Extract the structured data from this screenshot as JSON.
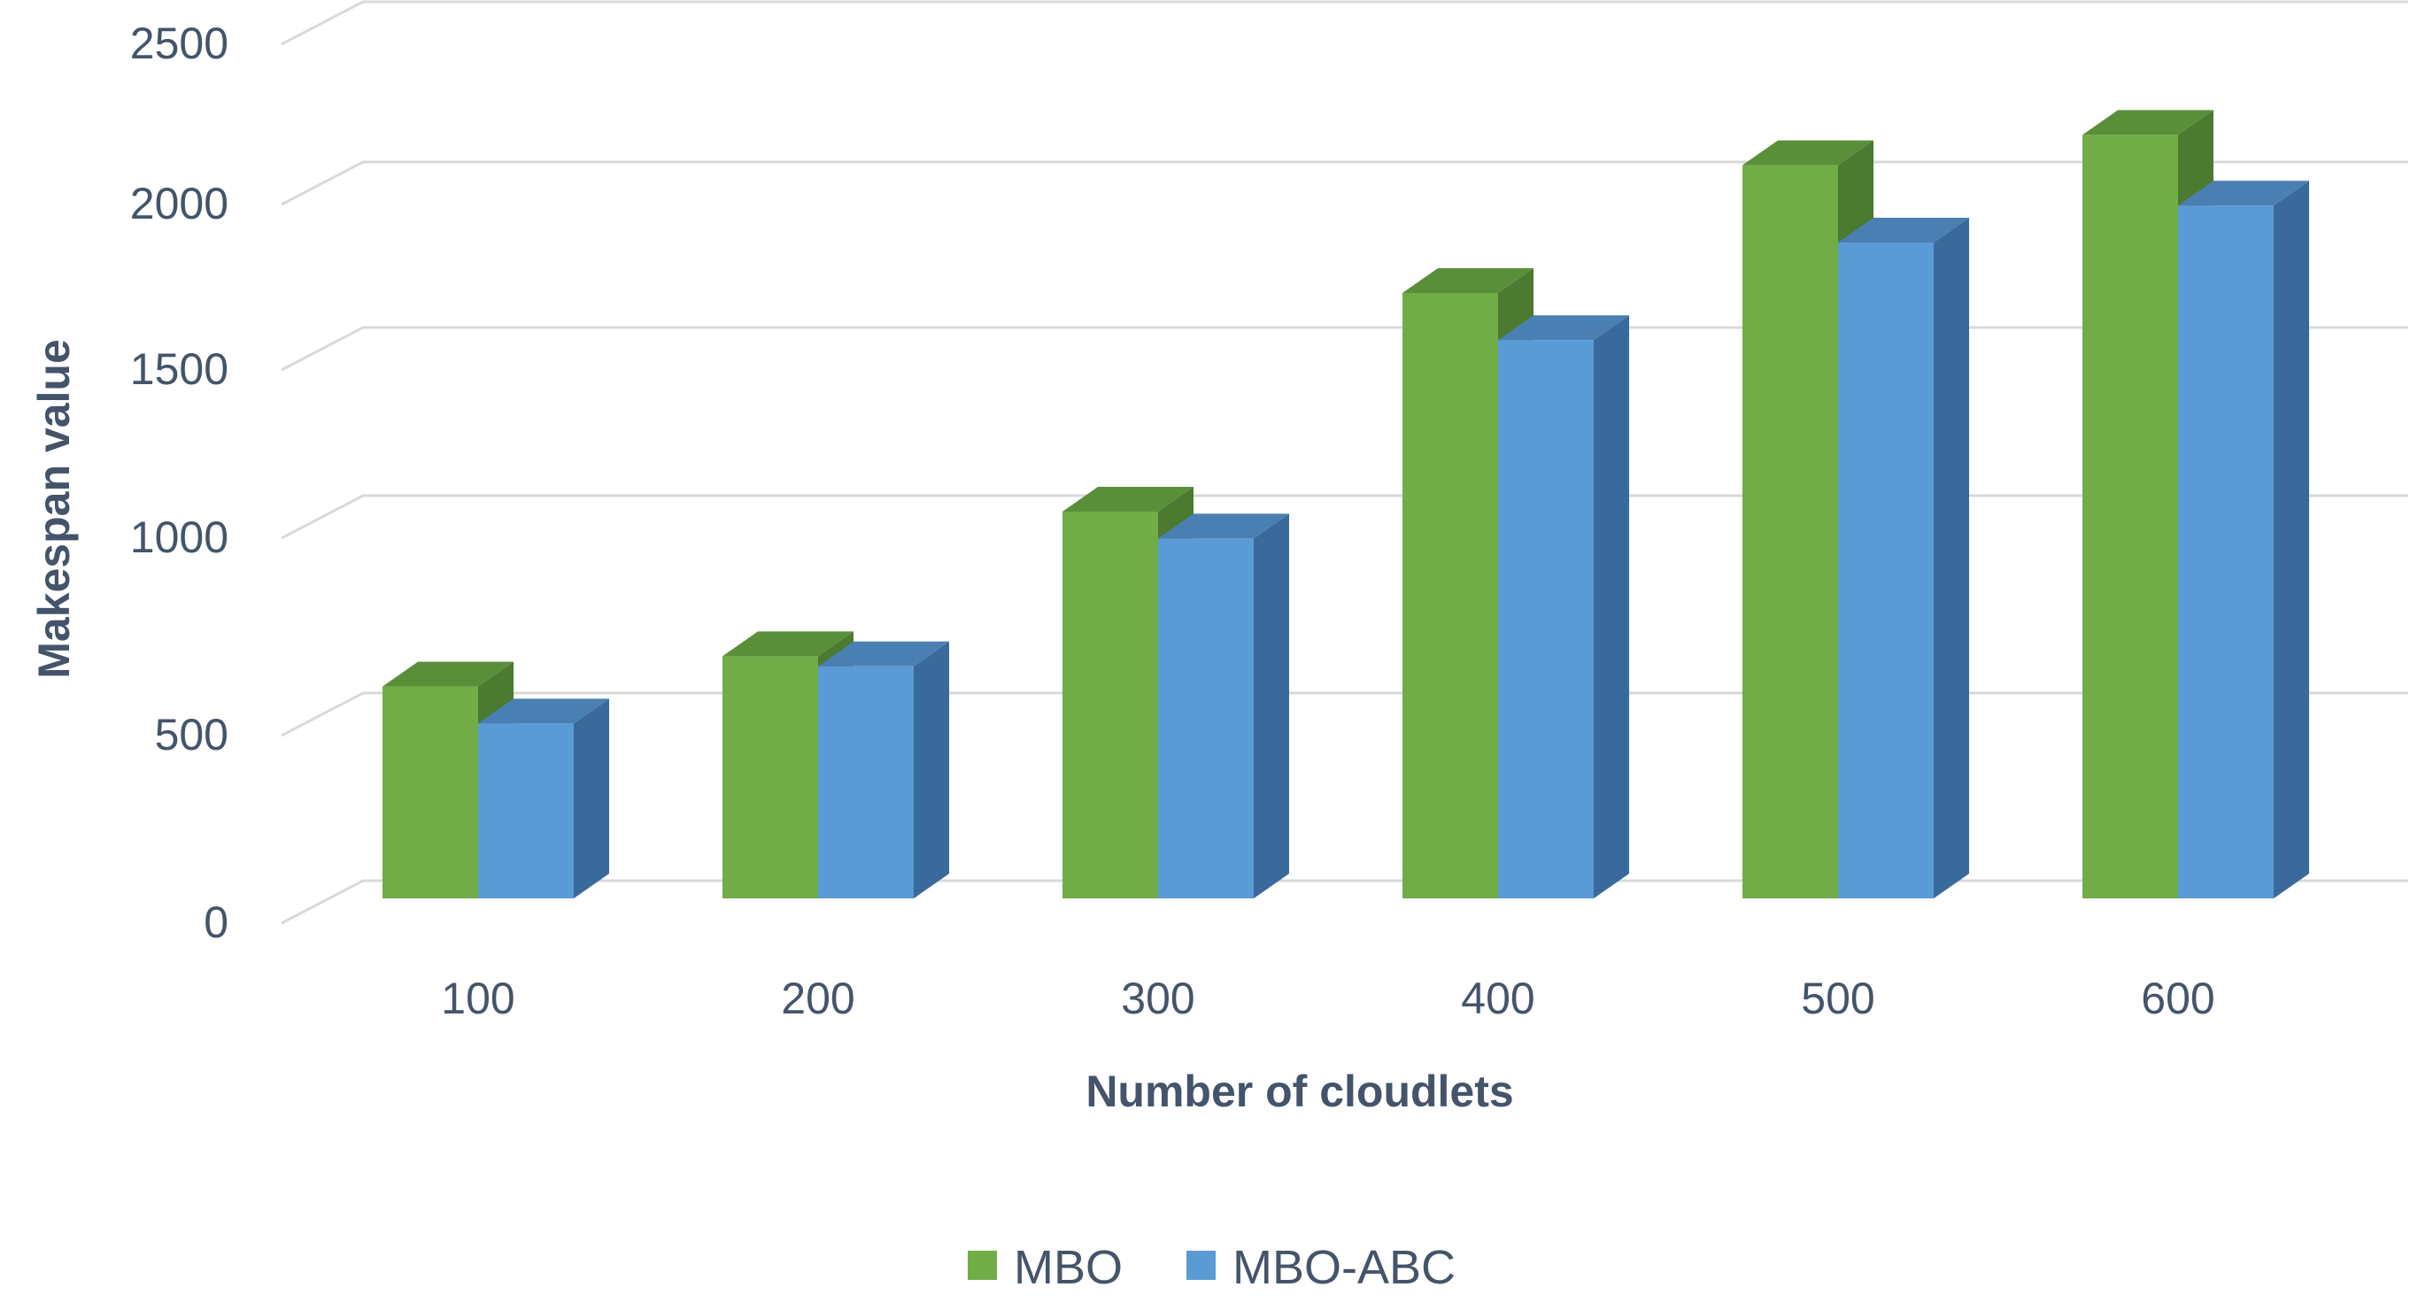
{
  "chart_data": {
    "type": "bar",
    "style": "3d-clustered-column",
    "categories": [
      "100",
      "200",
      "300",
      "400",
      "500",
      "600"
    ],
    "series": [
      {
        "name": "MBO",
        "values": [
          630,
          720,
          1150,
          1800,
          2180,
          2270
        ],
        "color": "#70ad47",
        "color_side": "#4b7a30",
        "color_top": "#5a8f3a"
      },
      {
        "name": "MBO-ABC",
        "values": [
          520,
          690,
          1070,
          1660,
          1950,
          2060
        ],
        "color": "#5b9bd5",
        "color_side": "#3a6a9c",
        "color_top": "#4a7fb3"
      }
    ],
    "y_ticks": [
      "0",
      "500",
      "1000",
      "1500",
      "2000",
      "2500"
    ],
    "ylim": [
      0,
      2500
    ],
    "xlabel": "Number of cloudlets",
    "ylabel": "Makespan value",
    "grid": true,
    "legend_position": "bottom"
  }
}
